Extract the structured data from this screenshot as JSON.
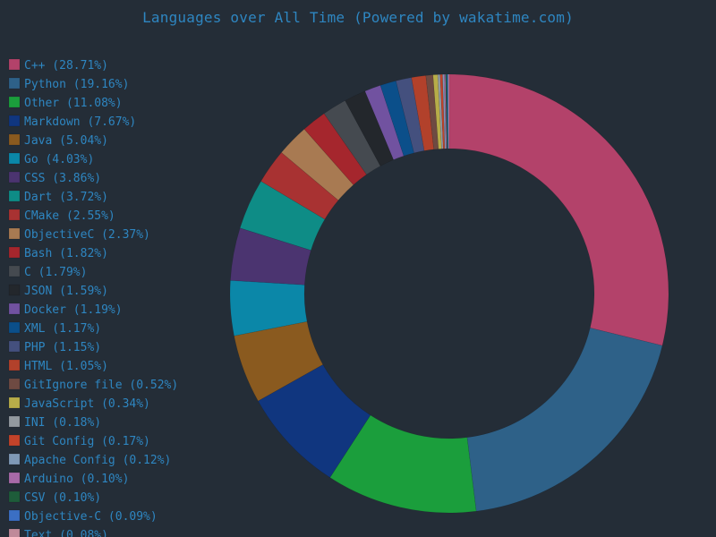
{
  "chart_data": {
    "type": "pie",
    "donut": true,
    "title": "Languages over All Time (Powered by wakatime.com)",
    "legend_position": "left",
    "slices": [
      {
        "label": "C++ (28.71%)",
        "name": "C++",
        "value": 28.71,
        "color": "#b3426a"
      },
      {
        "label": "Python (19.16%)",
        "name": "Python",
        "value": 19.16,
        "color": "#2e6188"
      },
      {
        "label": "Other (11.08%)",
        "name": "Other",
        "value": 11.08,
        "color": "#1b9e3c"
      },
      {
        "label": "Markdown (7.67%)",
        "name": "Markdown",
        "value": 7.67,
        "color": "#10367f"
      },
      {
        "label": "Java (5.04%)",
        "name": "Java",
        "value": 5.04,
        "color": "#8a5a1f"
      },
      {
        "label": "Go (4.03%)",
        "name": "Go",
        "value": 4.03,
        "color": "#0b87a8"
      },
      {
        "label": "CSS (3.86%)",
        "name": "CSS",
        "value": 3.86,
        "color": "#4b3470"
      },
      {
        "label": "Dart (3.72%)",
        "name": "Dart",
        "value": 3.72,
        "color": "#0e8c86"
      },
      {
        "label": "CMake (2.55%)",
        "name": "CMake",
        "value": 2.55,
        "color": "#a83232"
      },
      {
        "label": "ObjectiveC (2.37%)",
        "name": "ObjectiveC",
        "value": 2.37,
        "color": "#a87a52"
      },
      {
        "label": "Bash (1.82%)",
        "name": "Bash",
        "value": 1.82,
        "color": "#a5262d"
      },
      {
        "label": "C (1.79%)",
        "name": "C",
        "value": 1.79,
        "color": "#454a50"
      },
      {
        "label": "JSON (1.59%)",
        "name": "JSON",
        "value": 1.59,
        "color": "#23272c"
      },
      {
        "label": "Docker (1.19%)",
        "name": "Docker",
        "value": 1.19,
        "color": "#7152a0"
      },
      {
        "label": "XML (1.17%)",
        "name": "XML",
        "value": 1.17,
        "color": "#0b4f8a"
      },
      {
        "label": "PHP (1.15%)",
        "name": "PHP",
        "value": 1.15,
        "color": "#44507e"
      },
      {
        "label": "HTML (1.05%)",
        "name": "HTML",
        "value": 1.05,
        "color": "#b2412b"
      },
      {
        "label": "GitIgnore file (0.52%)",
        "name": "GitIgnore file",
        "value": 0.52,
        "color": "#6e4a42"
      },
      {
        "label": "JavaScript (0.34%)",
        "name": "JavaScript",
        "value": 0.34,
        "color": "#b7ad49"
      },
      {
        "label": "INI (0.18%)",
        "name": "INI",
        "value": 0.18,
        "color": "#939aa0"
      },
      {
        "label": "Git Config (0.17%)",
        "name": "Git Config",
        "value": 0.17,
        "color": "#c2432a"
      },
      {
        "label": "Apache Config (0.12%)",
        "name": "Apache Config",
        "value": 0.12,
        "color": "#7f99b6"
      },
      {
        "label": "Arduino (0.10%)",
        "name": "Arduino",
        "value": 0.1,
        "color": "#a86aa8"
      },
      {
        "label": "CSV (0.10%)",
        "name": "CSV",
        "value": 0.1,
        "color": "#1e5c3a"
      },
      {
        "label": "Objective-C (0.09%)",
        "name": "Objective-C",
        "value": 0.09,
        "color": "#3b6fc4"
      },
      {
        "label": "Text (0.08%)",
        "name": "Text",
        "value": 0.08,
        "color": "#c08a9a"
      }
    ],
    "colors": {
      "background": "#242d37",
      "text": "#2e86c1"
    }
  }
}
